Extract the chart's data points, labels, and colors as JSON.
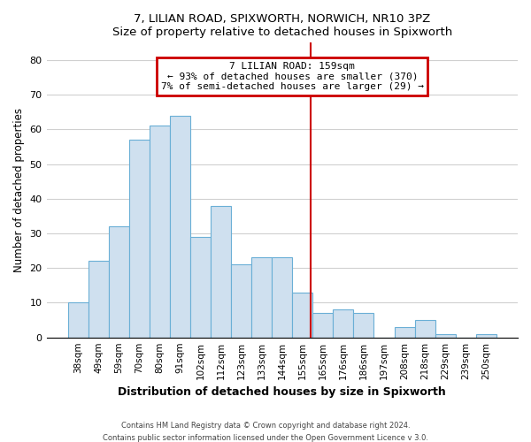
{
  "title": "7, LILIAN ROAD, SPIXWORTH, NORWICH, NR10 3PZ",
  "subtitle": "Size of property relative to detached houses in Spixworth",
  "xlabel": "Distribution of detached houses by size in Spixworth",
  "ylabel": "Number of detached properties",
  "footer_line1": "Contains HM Land Registry data © Crown copyright and database right 2024.",
  "footer_line2": "Contains public sector information licensed under the Open Government Licence v 3.0.",
  "bar_labels": [
    "38sqm",
    "49sqm",
    "59sqm",
    "70sqm",
    "80sqm",
    "91sqm",
    "102sqm",
    "112sqm",
    "123sqm",
    "133sqm",
    "144sqm",
    "155sqm",
    "165sqm",
    "176sqm",
    "186sqm",
    "197sqm",
    "208sqm",
    "218sqm",
    "229sqm",
    "239sqm",
    "250sqm"
  ],
  "bar_heights": [
    10,
    22,
    32,
    57,
    61,
    64,
    29,
    38,
    21,
    23,
    23,
    13,
    7,
    8,
    7,
    0,
    3,
    5,
    1,
    0,
    1
  ],
  "bar_color": "#cfe0ef",
  "bar_edge_color": "#6aafd6",
  "annotation_title": "7 LILIAN ROAD: 159sqm",
  "annotation_line1": "← 93% of detached houses are smaller (370)",
  "annotation_line2": "7% of semi-detached houses are larger (29) →",
  "annotation_box_edge_color": "#cc0000",
  "marker_color": "#cc0000",
  "ylim": [
    0,
    85
  ],
  "yticks": [
    0,
    10,
    20,
    30,
    40,
    50,
    60,
    70,
    80
  ],
  "grid_color": "#d0d0d0",
  "bg_color": "#ffffff"
}
